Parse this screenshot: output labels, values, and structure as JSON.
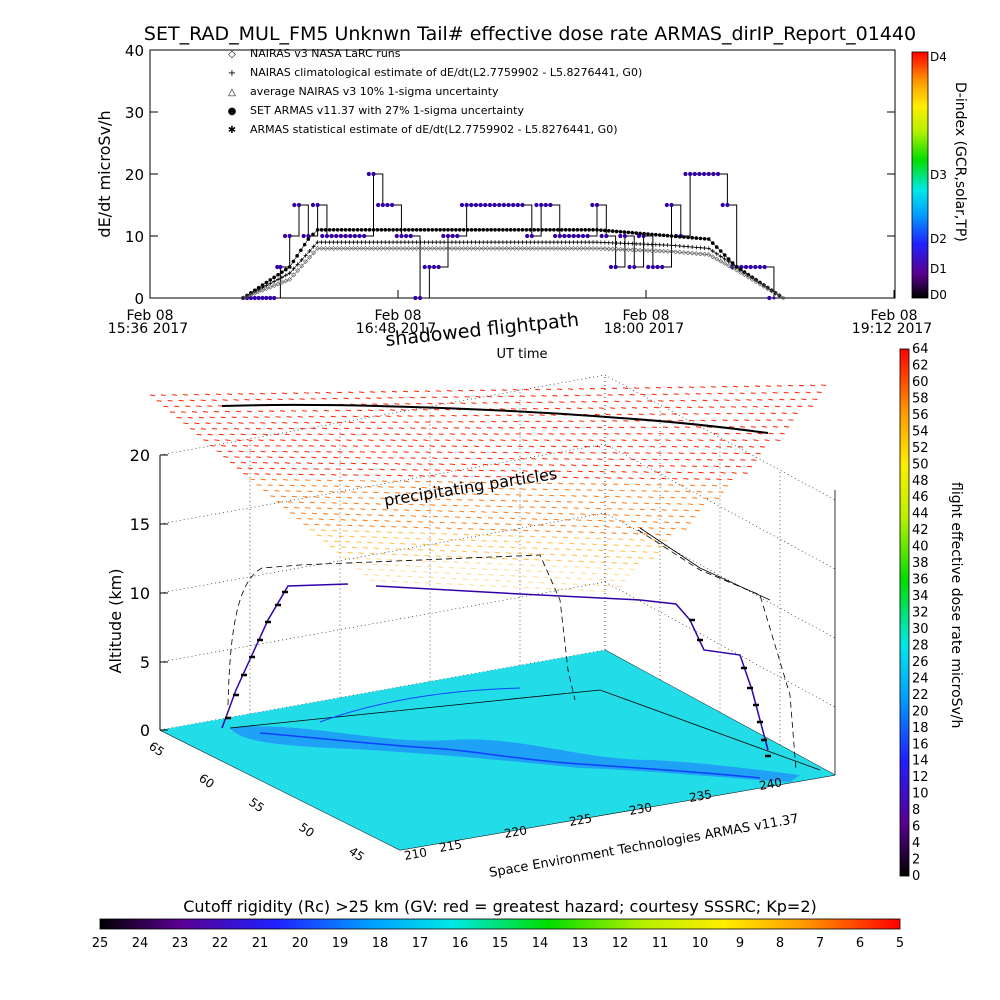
{
  "title": "SET_RAD_MUL_FM5 Unknwn Tail#  effective dose rate ARMAS_dirIP_Report_01440",
  "top_chart": {
    "ylabel": "dE/dt microSv/h",
    "xlabel": "UT time",
    "yticks": [
      "0",
      "10",
      "20",
      "30",
      "40"
    ],
    "xticks": [
      {
        "date": "Feb 08",
        "time": "15:36 2017"
      },
      {
        "date": "Feb 08",
        "time": "16:48 2017"
      },
      {
        "date": "Feb 08",
        "time": "18:00 2017"
      },
      {
        "date": "Feb 08",
        "time": "19:12 2017"
      }
    ],
    "legend": [
      {
        "symbol": "◇",
        "text": "NAIRAS v3 NASA LaRC runs"
      },
      {
        "symbol": "+",
        "text": "NAIRAS climatological estimate of dE/dt(L2.7759902 - L5.8276441, G0)"
      },
      {
        "symbol": "△",
        "text": "average NAIRAS v3 10% 1-sigma uncertainty"
      },
      {
        "symbol": "●",
        "text": "SET ARMAS v11.37 with 27% 1-sigma uncertainty"
      },
      {
        "symbol": "✱",
        "text": "ARMAS statistical estimate of dE/dt(L2.7759902 - L5.8276441, G0)"
      }
    ],
    "dindex_label": "D-index (GCR,solar,TP)",
    "dindex_ticks": [
      "D0",
      "D1",
      "D2",
      "D3",
      "D4"
    ]
  },
  "chart_data": [
    {
      "type": "line",
      "title": "SET_RAD_MUL_FM5 Unknwn Tail#  effective dose rate ARMAS_dirIP_Report_01440",
      "xlabel": "UT time",
      "ylabel": "dE/dt microSv/h",
      "x_range": [
        "Feb 08 15:36 2017",
        "Feb 08 19:12 2017"
      ],
      "ylim": [
        0,
        40
      ],
      "series": [
        {
          "name": "SET ARMAS v11.37 with 27% 1-sigma uncertainty",
          "x": [
            "16:06",
            "16:16",
            "16:18",
            "16:21",
            "16:24",
            "16:27",
            "16:30",
            "16:33",
            "16:36",
            "16:39",
            "16:42",
            "16:45",
            "16:48",
            "16:51",
            "16:54",
            "16:57",
            "17:00",
            "17:03",
            "17:06",
            "17:09",
            "17:12",
            "17:15",
            "17:18",
            "17:21",
            "17:24",
            "17:27",
            "17:30",
            "17:33",
            "17:36",
            "17:39",
            "17:42",
            "17:45",
            "17:48",
            "17:51",
            "17:54",
            "17:57",
            "18:00",
            "18:03",
            "18:06",
            "18:09",
            "18:12",
            "18:15",
            "18:18",
            "18:21",
            "18:24",
            "18:27",
            "18:30",
            "18:33",
            "18:36",
            "18:39",
            "18:42",
            "18:45",
            "18:48",
            "18:51",
            "18:54",
            "18:57"
          ],
          "values": [
            0,
            0,
            5,
            10,
            15,
            10,
            15,
            10,
            10,
            10,
            10,
            10,
            20,
            15,
            15,
            10,
            10,
            0,
            5,
            5,
            10,
            10,
            15,
            15,
            15,
            15,
            15,
            15,
            15,
            10,
            15,
            15,
            10,
            10,
            10,
            10,
            15,
            10,
            5,
            10,
            5,
            10,
            5,
            5,
            15,
            10,
            20,
            20,
            20,
            20,
            15,
            5,
            5,
            5,
            5,
            0
          ]
        },
        {
          "name": "NAIRAS climatological estimate of dE/dt(L2.7759902 - L5.8276441, G0)",
          "x": [
            "16:06",
            "16:21",
            "16:30",
            "16:48",
            "17:12",
            "17:36",
            "18:00",
            "18:24",
            "18:36",
            "18:45",
            "19:00"
          ],
          "values": [
            0,
            4,
            9,
            9,
            9,
            9,
            9,
            8.5,
            8,
            5,
            0
          ]
        },
        {
          "name": "ARMAS statistical estimate of dE/dt(L2.7759902 - L5.8276441, G0)",
          "x": [
            "16:06",
            "16:21",
            "16:27",
            "16:30",
            "16:48",
            "17:12",
            "17:36",
            "18:00",
            "18:24",
            "18:36",
            "18:45",
            "19:00"
          ],
          "values": [
            0,
            5,
            9.5,
            11,
            11,
            11,
            11,
            11,
            10,
            9.5,
            5,
            0
          ]
        },
        {
          "name": "NAIRAS v3 NASA LaRC runs",
          "x": [
            "16:06",
            "16:21",
            "16:30",
            "16:48",
            "17:12",
            "17:36",
            "18:00",
            "18:24",
            "18:36",
            "18:45",
            "19:00"
          ],
          "values": [
            0,
            3,
            8,
            8,
            8,
            8,
            8,
            7.5,
            7,
            4.5,
            0
          ]
        }
      ]
    },
    {
      "type": "scatter",
      "title": "shadowed flightpath",
      "xlabel": "",
      "ylabel": "Altitude (km)",
      "zticks": [
        "0",
        "5",
        "10",
        "15",
        "20"
      ],
      "lon_ticks": [
        "210",
        "215",
        "220",
        "225",
        "230",
        "235",
        "240"
      ],
      "lat_ticks": [
        "45",
        "50",
        "55",
        "60",
        "65"
      ],
      "colorbar_label": "flight effective dose rate microSv/h",
      "colorbar_range": [
        0,
        64
      ],
      "series": [
        {
          "name": "flight altitude profile",
          "x": [
            0,
            0.1,
            0.2,
            0.3,
            0.45,
            0.6,
            0.75,
            0.85,
            0.92,
            1.0
          ],
          "values": [
            0.5,
            4,
            9,
            10.6,
            10.6,
            10.3,
            9.8,
            9.2,
            5,
            0.5
          ]
        }
      ]
    },
    {
      "type": "heatmap",
      "title": "Cutoff rigidity (Rc) >25 km (GV: red = greatest hazard; courtesy SSSRC; Kp=2)",
      "xlabel": "",
      "ylabel": "",
      "range": [
        25,
        5
      ]
    }
  ],
  "plot3d": {
    "shadow_label": "shadowed flightpath",
    "precip_label": "precipitating particles",
    "zlabel": "Altitude (km)",
    "zticks": [
      "0",
      "5",
      "10",
      "15",
      "20"
    ],
    "lon_ticks": [
      "210",
      "215",
      "220",
      "225",
      "230",
      "235",
      "240"
    ],
    "lat_ticks": [
      "45",
      "50",
      "55",
      "60",
      "65"
    ],
    "credit": "Space Environment Technologies ARMAS v11.37",
    "colorbar_label": "flight effective dose rate microSv/h",
    "colorbar_ticks": [
      "0",
      "2",
      "4",
      "6",
      "8",
      "10",
      "12",
      "14",
      "16",
      "18",
      "20",
      "22",
      "24",
      "26",
      "28",
      "30",
      "32",
      "34",
      "36",
      "38",
      "40",
      "42",
      "44",
      "46",
      "48",
      "50",
      "52",
      "54",
      "56",
      "58",
      "60",
      "62",
      "64"
    ]
  },
  "bottom_bar": {
    "title": "Cutoff rigidity (Rc) >25 km (GV: red = greatest hazard; courtesy SSSRC; Kp=2)",
    "ticks": [
      "25",
      "24",
      "23",
      "22",
      "21",
      "20",
      "19",
      "18",
      "17",
      "16",
      "15",
      "14",
      "13",
      "12",
      "11",
      "10",
      "9",
      "8",
      "7",
      "6",
      "5"
    ]
  },
  "colors": {
    "sea": "#22dde8",
    "armas": "#3300aa",
    "precip_hi": "#ff2200",
    "precip_lo": "#ffcc33"
  }
}
